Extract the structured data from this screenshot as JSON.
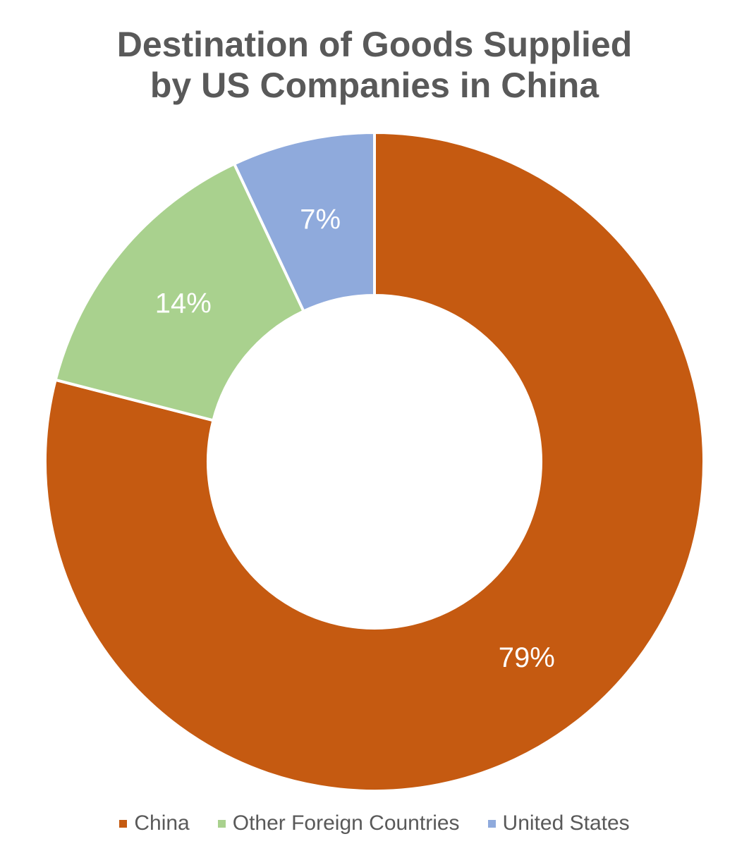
{
  "chart_data": {
    "type": "pie",
    "donut": true,
    "title_lines": [
      "Destination of Goods Supplied",
      "by US Companies in China"
    ],
    "categories": [
      "China",
      "Other Foreign Countries",
      "United States"
    ],
    "values": [
      79,
      14,
      7
    ],
    "data_labels": [
      "79%",
      "14%",
      "7%"
    ],
    "colors": [
      "#C55A11",
      "#A9D18E",
      "#8FAADC"
    ],
    "legend_position": "bottom"
  }
}
